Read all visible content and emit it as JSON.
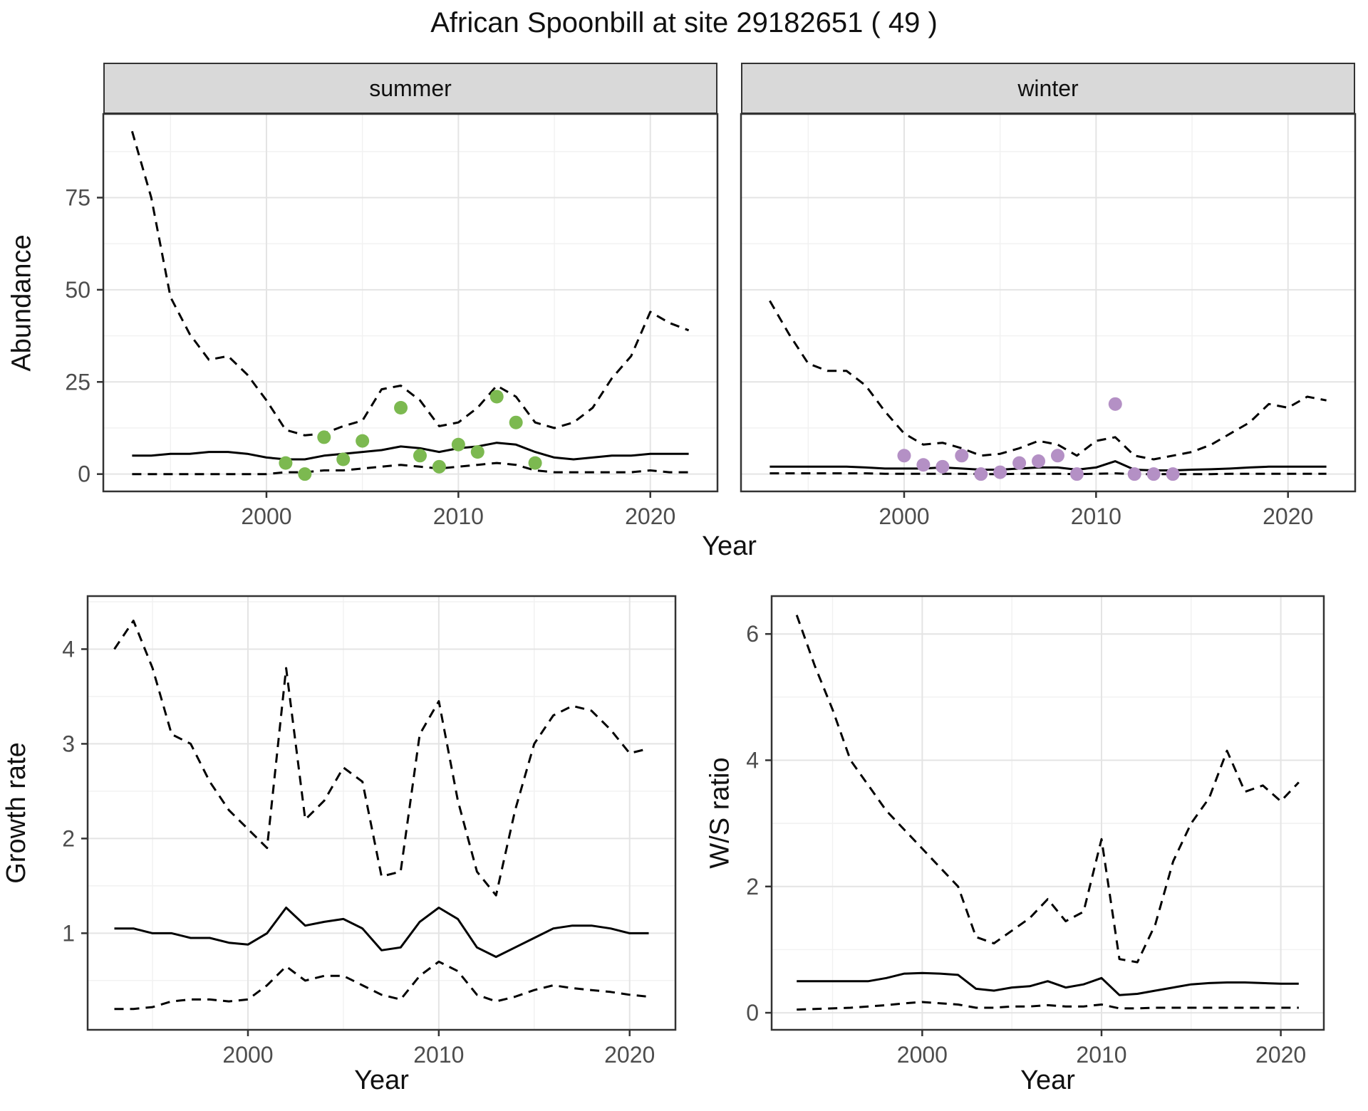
{
  "title": "African Spoonbill at site 29182651 ( 49 )",
  "axes": {
    "abundance_label": "Abundance",
    "growth_label": "Growth rate",
    "ws_label": "W/S ratio",
    "year_label": "Year"
  },
  "facets": [
    {
      "label": "summer"
    },
    {
      "label": "winter"
    }
  ],
  "style": {
    "line_color": "#000000",
    "summer_point_color": "#7cb950",
    "winter_point_color": "#b490c5",
    "grid_major_color": "#e4e4e4",
    "grid_minor_color": "#f1f1f1",
    "panel_border_color": "#333333",
    "strip_bg": "#d9d9d9",
    "tick_label_color": "#4d4d4d"
  },
  "chart_data": [
    {
      "id": "abundance_summer",
      "type": "line",
      "facet": "summer",
      "xlabel": "Year",
      "ylabel": "Abundance",
      "xlim": [
        1991.5,
        2023.5
      ],
      "ylim": [
        -4.7,
        97.7
      ],
      "xticks": [
        2000,
        2010,
        2020
      ],
      "yticks": [
        0,
        25,
        50,
        75
      ],
      "xminor": [
        1995,
        2005,
        2015
      ],
      "yminor": [
        12.5,
        37.5,
        62.5,
        87.5
      ],
      "show_y_labels": true,
      "grid": true,
      "x": [
        1993,
        1994,
        1995,
        1996,
        1997,
        1998,
        1999,
        2000,
        2001,
        2002,
        2003,
        2004,
        2005,
        2006,
        2007,
        2008,
        2009,
        2010,
        2011,
        2012,
        2013,
        2014,
        2015,
        2016,
        2017,
        2018,
        2019,
        2020,
        2021,
        2022
      ],
      "series": [
        {
          "name": "upper_95ci",
          "style": "dashed",
          "values": [
            93,
            75,
            48,
            38,
            31,
            32,
            27,
            20,
            12,
            10.5,
            11,
            13,
            14.5,
            23,
            24,
            20,
            13,
            14,
            18,
            24,
            21,
            14,
            12.5,
            14,
            18,
            26,
            32,
            44,
            41,
            39
          ]
        },
        {
          "name": "median",
          "style": "solid",
          "values": [
            5,
            5,
            5.5,
            5.5,
            6,
            6,
            5.5,
            4.5,
            4,
            4,
            5,
            5.5,
            6,
            6.5,
            7.5,
            7,
            6,
            7,
            7.5,
            8.5,
            8,
            6,
            4.5,
            4,
            4.5,
            5,
            5,
            5.5,
            5.5,
            5.5
          ]
        },
        {
          "name": "lower_95ci",
          "style": "dashed",
          "values": [
            0,
            0,
            0,
            0,
            0,
            0,
            0,
            0,
            0.5,
            0.5,
            1,
            1,
            1.5,
            2,
            2.5,
            2,
            1.5,
            2,
            2.5,
            3,
            2.5,
            1,
            0.5,
            0.5,
            0.5,
            0.5,
            0.5,
            1,
            0.5,
            0.5
          ]
        }
      ],
      "points": {
        "name": "observed_counts_summer",
        "color": "#7cb950",
        "x": [
          2001,
          2002,
          2003,
          2004,
          2005,
          2007,
          2008,
          2009,
          2010,
          2011,
          2012,
          2013,
          2014
        ],
        "y": [
          3,
          0,
          10,
          4,
          9,
          18,
          5,
          2,
          8,
          6,
          21,
          14,
          3
        ]
      }
    },
    {
      "id": "abundance_winter",
      "type": "line",
      "facet": "winter",
      "xlabel": "Year",
      "ylabel": "Abundance",
      "xlim": [
        1991.5,
        2023.5
      ],
      "ylim": [
        -4.7,
        97.7
      ],
      "xticks": [
        2000,
        2010,
        2020
      ],
      "yticks": [
        0,
        25,
        50,
        75
      ],
      "xminor": [
        1995,
        2005,
        2015
      ],
      "yminor": [
        12.5,
        37.5,
        62.5,
        87.5
      ],
      "show_y_labels": false,
      "grid": true,
      "x": [
        1993,
        1994,
        1995,
        1996,
        1997,
        1998,
        1999,
        2000,
        2001,
        2002,
        2003,
        2004,
        2005,
        2006,
        2007,
        2008,
        2009,
        2010,
        2011,
        2012,
        2013,
        2014,
        2015,
        2016,
        2017,
        2018,
        2019,
        2020,
        2021,
        2022
      ],
      "series": [
        {
          "name": "upper_95ci",
          "style": "dashed",
          "values": [
            47,
            38,
            30,
            28,
            28,
            24,
            17,
            11,
            8,
            8.5,
            7,
            5,
            5.5,
            7,
            9,
            8,
            5,
            9,
            10,
            5,
            4,
            5,
            6,
            8,
            11,
            14,
            19,
            18,
            21,
            20
          ]
        },
        {
          "name": "median",
          "style": "solid",
          "values": [
            2,
            2,
            2,
            2,
            2,
            1.8,
            1.5,
            1.5,
            1.5,
            1.8,
            1.5,
            1.2,
            1.2,
            1.5,
            1.8,
            1.8,
            1.2,
            1.8,
            3.5,
            1.2,
            1,
            1,
            1.2,
            1.3,
            1.5,
            1.8,
            2,
            2,
            2,
            2
          ]
        },
        {
          "name": "lower_95ci",
          "style": "dashed",
          "values": [
            0.2,
            0.2,
            0.2,
            0.2,
            0.2,
            0.2,
            0.1,
            0.1,
            0.1,
            0.1,
            0.1,
            0,
            0,
            0.1,
            0.1,
            0.1,
            0,
            0.1,
            0.2,
            0,
            0,
            0,
            0,
            0,
            0.1,
            0.1,
            0.1,
            0.1,
            0.1,
            0.1
          ]
        }
      ],
      "points": {
        "name": "observed_counts_winter",
        "color": "#b490c5",
        "x": [
          2000,
          2001,
          2002,
          2003,
          2004,
          2005,
          2006,
          2007,
          2008,
          2009,
          2011,
          2012,
          2013,
          2014
        ],
        "y": [
          5,
          2.5,
          2,
          5,
          0,
          0.5,
          3,
          3.5,
          5,
          0,
          19,
          0,
          0,
          0
        ]
      }
    },
    {
      "id": "growth_rate",
      "type": "line",
      "facet": null,
      "xlabel": "Year",
      "ylabel": "Growth rate",
      "xlim": [
        1991.6,
        2022.4
      ],
      "ylim": [
        -0.02,
        4.56
      ],
      "xticks": [
        2000,
        2010,
        2020
      ],
      "yticks": [
        1,
        2,
        3,
        4
      ],
      "xminor": [
        1995,
        2005,
        2015
      ],
      "yminor": [
        0.5,
        1.5,
        2.5,
        3.5,
        4.5
      ],
      "show_y_labels": true,
      "grid": true,
      "x": [
        1993,
        1994,
        1995,
        1996,
        1997,
        1998,
        1999,
        2000,
        2001,
        2002,
        2003,
        2004,
        2005,
        2006,
        2007,
        2008,
        2009,
        2010,
        2011,
        2012,
        2013,
        2014,
        2015,
        2016,
        2017,
        2018,
        2019,
        2020,
        2021
      ],
      "series": [
        {
          "name": "upper_95ci",
          "style": "dashed",
          "values": [
            4.0,
            4.3,
            3.8,
            3.1,
            3.0,
            2.6,
            2.3,
            2.1,
            1.9,
            3.8,
            2.2,
            2.4,
            2.75,
            2.6,
            1.6,
            1.65,
            3.1,
            3.45,
            2.4,
            1.65,
            1.4,
            2.3,
            3.0,
            3.3,
            3.4,
            3.35,
            3.15,
            2.9,
            2.95
          ]
        },
        {
          "name": "median",
          "style": "solid",
          "values": [
            1.05,
            1.05,
            1.0,
            1.0,
            0.95,
            0.95,
            0.9,
            0.88,
            1.0,
            1.27,
            1.08,
            1.12,
            1.15,
            1.05,
            0.82,
            0.85,
            1.12,
            1.27,
            1.15,
            0.85,
            0.75,
            0.85,
            0.95,
            1.05,
            1.08,
            1.08,
            1.05,
            1.0,
            1.0
          ]
        },
        {
          "name": "lower_95ci",
          "style": "dashed",
          "values": [
            0.2,
            0.2,
            0.22,
            0.28,
            0.3,
            0.3,
            0.28,
            0.3,
            0.45,
            0.65,
            0.5,
            0.55,
            0.55,
            0.45,
            0.35,
            0.3,
            0.55,
            0.7,
            0.6,
            0.35,
            0.28,
            0.33,
            0.4,
            0.45,
            0.42,
            0.4,
            0.38,
            0.35,
            0.33
          ]
        }
      ]
    },
    {
      "id": "ws_ratio",
      "type": "line",
      "facet": null,
      "xlabel": "Year",
      "ylabel": "W/S ratio",
      "xlim": [
        1991.6,
        2022.4
      ],
      "ylim": [
        -0.27,
        6.6
      ],
      "xticks": [
        2000,
        2010,
        2020
      ],
      "yticks": [
        0,
        2,
        4,
        6
      ],
      "xminor": [
        1995,
        2005,
        2015
      ],
      "yminor": [
        1,
        3,
        5
      ],
      "show_y_labels": true,
      "grid": true,
      "x": [
        1993,
        1994,
        1995,
        1996,
        1997,
        1998,
        1999,
        2000,
        2001,
        2002,
        2003,
        2004,
        2005,
        2006,
        2007,
        2008,
        2009,
        2010,
        2011,
        2012,
        2013,
        2014,
        2015,
        2016,
        2017,
        2018,
        2019,
        2020,
        2021
      ],
      "series": [
        {
          "name": "upper_95ci",
          "style": "dashed",
          "values": [
            6.3,
            5.5,
            4.8,
            4.0,
            3.6,
            3.2,
            2.9,
            2.6,
            2.3,
            2.0,
            1.2,
            1.1,
            1.3,
            1.5,
            1.8,
            1.45,
            1.6,
            2.75,
            0.85,
            0.8,
            1.4,
            2.4,
            3.0,
            3.4,
            4.15,
            3.5,
            3.6,
            3.35,
            3.65
          ]
        },
        {
          "name": "median",
          "style": "solid",
          "values": [
            0.5,
            0.5,
            0.5,
            0.5,
            0.5,
            0.55,
            0.62,
            0.63,
            0.62,
            0.6,
            0.38,
            0.35,
            0.4,
            0.42,
            0.5,
            0.4,
            0.45,
            0.55,
            0.28,
            0.3,
            0.35,
            0.4,
            0.45,
            0.47,
            0.48,
            0.48,
            0.47,
            0.46,
            0.46
          ]
        },
        {
          "name": "lower_95ci",
          "style": "dashed",
          "values": [
            0.05,
            0.06,
            0.07,
            0.08,
            0.1,
            0.12,
            0.15,
            0.17,
            0.15,
            0.13,
            0.08,
            0.08,
            0.1,
            0.1,
            0.12,
            0.1,
            0.1,
            0.13,
            0.07,
            0.07,
            0.08,
            0.08,
            0.08,
            0.08,
            0.08,
            0.08,
            0.08,
            0.08,
            0.08
          ]
        }
      ]
    }
  ]
}
